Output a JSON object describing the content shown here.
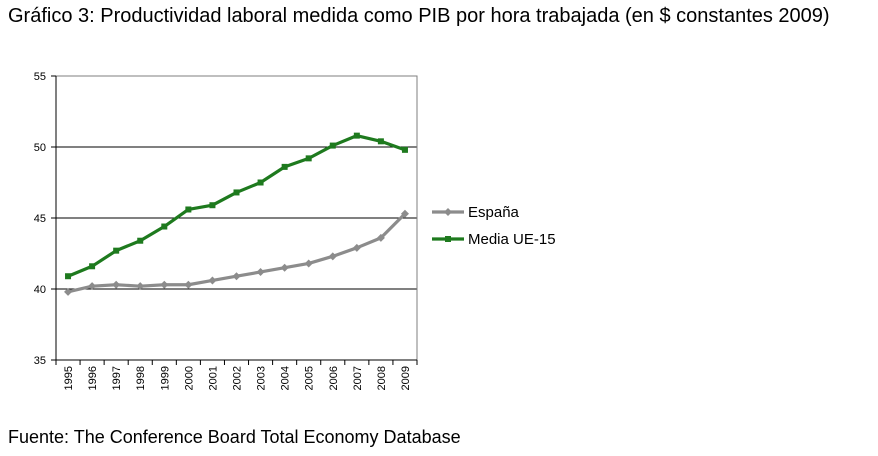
{
  "chart_data": {
    "type": "line",
    "title": "Gráfico 3: Productividad laboral medida como PIB por hora trabajada (en $ constantes 2009)",
    "categories": [
      "1995",
      "1996",
      "1997",
      "1998",
      "1999",
      "2000",
      "2001",
      "2002",
      "2003",
      "2004",
      "2005",
      "2006",
      "2007",
      "2008",
      "2009"
    ],
    "ylim": [
      35,
      55
    ],
    "yticks": [
      35,
      40,
      45,
      50,
      55
    ],
    "grid": "horizontal",
    "legend_position": "right",
    "series": [
      {
        "name": "España",
        "color": "#8c8c8c",
        "marker": "diamond",
        "values": [
          39.8,
          40.2,
          40.3,
          40.2,
          40.3,
          40.3,
          40.6,
          40.9,
          41.2,
          41.5,
          41.8,
          42.3,
          42.9,
          43.6,
          45.3
        ]
      },
      {
        "name": "Media UE-15",
        "color": "#1e7a1e",
        "marker": "square",
        "values": [
          40.9,
          41.6,
          42.7,
          43.4,
          44.4,
          45.6,
          45.9,
          46.8,
          47.5,
          48.6,
          49.2,
          50.1,
          50.8,
          50.4,
          49.8
        ]
      }
    ],
    "source": "Fuente: The Conference Board Total Economy Database"
  }
}
